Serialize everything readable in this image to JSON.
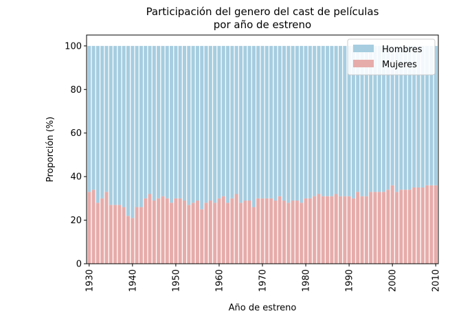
{
  "chart_data": {
    "type": "bar",
    "stacked": true,
    "title_lines": [
      "Participación del genero del cast de películas",
      "por año de estreno"
    ],
    "xlabel": "Año de estreno",
    "ylabel": "Proporción (%)",
    "xlim": [
      1929.4,
      2010.6
    ],
    "ylim": [
      0,
      105
    ],
    "x_ticks": [
      1930,
      1940,
      1950,
      1960,
      1970,
      1980,
      1990,
      2000,
      2010
    ],
    "y_ticks": [
      0,
      20,
      40,
      60,
      80,
      100
    ],
    "grid": false,
    "legend_position": "top-right",
    "colors": {
      "hombres": "#a6cde0",
      "mujeres": "#e6acaa"
    },
    "x": [
      1930,
      1931,
      1932,
      1933,
      1934,
      1935,
      1936,
      1937,
      1938,
      1939,
      1940,
      1941,
      1942,
      1943,
      1944,
      1945,
      1946,
      1947,
      1948,
      1949,
      1950,
      1951,
      1952,
      1953,
      1954,
      1955,
      1956,
      1957,
      1958,
      1959,
      1960,
      1961,
      1962,
      1963,
      1964,
      1965,
      1966,
      1967,
      1968,
      1969,
      1970,
      1971,
      1972,
      1973,
      1974,
      1975,
      1976,
      1977,
      1978,
      1979,
      1980,
      1981,
      1982,
      1983,
      1984,
      1985,
      1986,
      1987,
      1988,
      1989,
      1990,
      1991,
      1992,
      1993,
      1994,
      1995,
      1996,
      1997,
      1998,
      1999,
      2000,
      2001,
      2002,
      2003,
      2004,
      2005,
      2006,
      2007,
      2008,
      2009,
      2010
    ],
    "series": [
      {
        "name": "Mujeres",
        "values": [
          33,
          34,
          28,
          30,
          33,
          27,
          27,
          27,
          26,
          22,
          21,
          26,
          26,
          30,
          32,
          29,
          30,
          31,
          30,
          28,
          30,
          30,
          29,
          27,
          28,
          29,
          25,
          28,
          29,
          28,
          30,
          31,
          28,
          30,
          32,
          28,
          29,
          29,
          26,
          30,
          30,
          30,
          30,
          29,
          31,
          29,
          28,
          29,
          29,
          28,
          30,
          30,
          31,
          32,
          31,
          31,
          31,
          32,
          31,
          31,
          31,
          30,
          33,
          31,
          31,
          33,
          33,
          33,
          33,
          34,
          36,
          33,
          34,
          34,
          34,
          35,
          35,
          35,
          36,
          36,
          36
        ]
      },
      {
        "name": "Hombres",
        "values": [
          67,
          66,
          72,
          70,
          67,
          73,
          73,
          73,
          74,
          78,
          79,
          74,
          74,
          70,
          68,
          71,
          70,
          69,
          70,
          72,
          70,
          70,
          71,
          73,
          72,
          71,
          75,
          72,
          71,
          72,
          70,
          69,
          72,
          70,
          68,
          72,
          71,
          71,
          74,
          70,
          70,
          70,
          70,
          71,
          69,
          71,
          72,
          71,
          71,
          72,
          70,
          70,
          69,
          68,
          69,
          69,
          69,
          68,
          69,
          69,
          69,
          70,
          67,
          69,
          69,
          67,
          67,
          67,
          67,
          66,
          64,
          67,
          66,
          66,
          66,
          65,
          65,
          65,
          64,
          64,
          64
        ]
      }
    ]
  }
}
